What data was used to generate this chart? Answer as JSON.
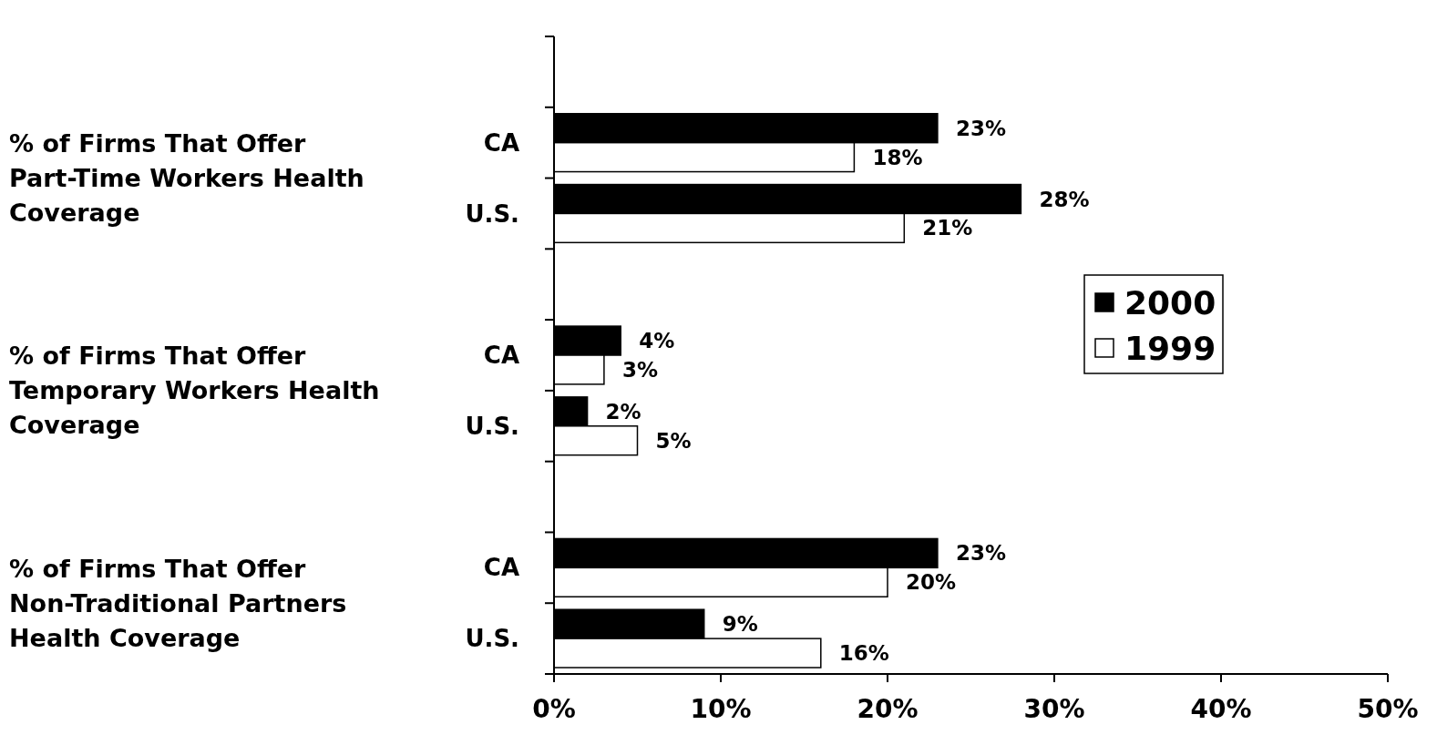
{
  "chart_data": {
    "type": "bar",
    "orientation": "horizontal",
    "categories": [
      null,
      "CA",
      "U.S.",
      null,
      "CA",
      "U.S.",
      null,
      "CA",
      "U.S."
    ],
    "series": [
      {
        "name": "2000",
        "color": "#000000",
        "values": [
          null,
          23,
          28,
          null,
          4,
          2,
          null,
          23,
          9
        ],
        "value_labels": [
          null,
          "23%",
          "28%",
          null,
          "4%",
          "2%",
          null,
          "23%",
          "9%"
        ]
      },
      {
        "name": "1999",
        "color": "#ffffff",
        "values": [
          null,
          18,
          21,
          null,
          3,
          5,
          null,
          20,
          16
        ],
        "value_labels": [
          null,
          "18%",
          "21%",
          null,
          "3%",
          "5%",
          null,
          "20%",
          "16%"
        ]
      }
    ],
    "xlim": [
      0,
      50
    ],
    "xticks": [
      {
        "value": 0,
        "label": "0%"
      },
      {
        "value": 10,
        "label": "10%"
      },
      {
        "value": 20,
        "label": "20%"
      },
      {
        "value": 30,
        "label": "30%"
      },
      {
        "value": 40,
        "label": "40%"
      },
      {
        "value": 50,
        "label": "50%"
      }
    ],
    "annotations": [
      "% of Firms That Offer Part-Time Workers Health Coverage",
      "% of Firms That Offer Temporary Workers Health Coverage",
      "% of Firms That Offer Non-Traditional Partners Health Coverage"
    ],
    "legend": "right",
    "grid": false
  }
}
